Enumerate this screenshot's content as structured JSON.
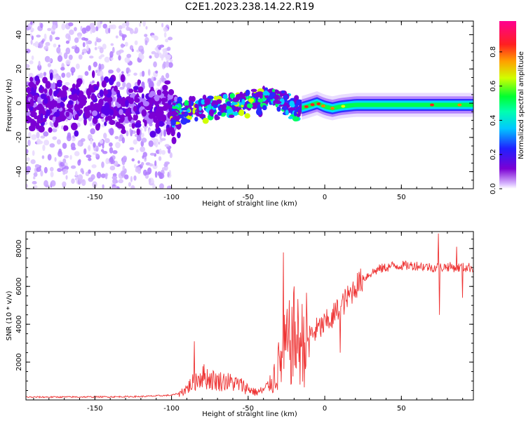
{
  "title": "C2E1.2023.238.14.22.R19",
  "chart_data": [
    {
      "type": "heatmap",
      "xlabel": "Height of straight line (km)",
      "ylabel": "Frequency (Hz)",
      "xlim": [
        -195,
        97
      ],
      "ylim": [
        -50,
        48
      ],
      "xticks": [
        -150,
        -100,
        -50,
        0,
        50
      ],
      "yticks": [
        -40,
        -20,
        0,
        20,
        40
      ],
      "colorbar": {
        "label": "Normalized spectral amplitude",
        "range": [
          0.0,
          0.98
        ],
        "ticks": [
          0.0,
          0.2,
          0.4,
          0.6,
          0.8
        ],
        "colormap": [
          "#ffffff",
          "#7b00d4",
          "#2020ff",
          "#00e0ff",
          "#00ff40",
          "#e0ff00",
          "#ff8000",
          "#ff0040",
          "#ff0090"
        ]
      },
      "ridge": {
        "x": [
          -195,
          -150,
          -110,
          -100,
          -90,
          -75,
          -60,
          -45,
          -35,
          -28,
          -20,
          -12,
          -5,
          0,
          5,
          10,
          20,
          40,
          70,
          97
        ],
        "y": [
          0,
          0,
          -2,
          -7,
          -5,
          -3,
          -1,
          1,
          3,
          2,
          -4,
          -2,
          0,
          -2,
          -3,
          -2,
          -1,
          -1,
          -1,
          -1
        ]
      }
    },
    {
      "type": "line",
      "xlabel": "Height of straight line (km)",
      "ylabel": "SNR (10 * v/v)",
      "xlim": [
        -195,
        97
      ],
      "ylim": [
        0,
        8900
      ],
      "xticks": [
        -150,
        -100,
        -50,
        0,
        50
      ],
      "yticks": [
        2000,
        4000,
        6000,
        8000
      ],
      "color": "#ee3333",
      "series": [
        {
          "x": [
            -195,
            -150,
            -120,
            -100,
            -95,
            -90,
            -85,
            -80,
            -75,
            -70,
            -65,
            -60,
            -55,
            -50,
            -45,
            -40,
            -35,
            -30,
            -25,
            -20,
            -15,
            -10,
            -5,
            0,
            5,
            10,
            15,
            20,
            25,
            30,
            35,
            40,
            45,
            50,
            55,
            60,
            65,
            70,
            75,
            80,
            85,
            90,
            97
          ],
          "y": [
            150,
            160,
            180,
            250,
            350,
            600,
            1000,
            1300,
            1100,
            1000,
            1000,
            900,
            800,
            600,
            400,
            500,
            900,
            1800,
            2800,
            3200,
            3000,
            3400,
            3700,
            4000,
            4400,
            4900,
            5400,
            6000,
            6400,
            6700,
            6900,
            7000,
            7100,
            7100,
            7100,
            7100,
            7050,
            7000,
            7000,
            7050,
            7000,
            7000,
            7000
          ]
        }
      ],
      "spikes": [
        {
          "x": -85,
          "y": 3100
        },
        {
          "x": -27,
          "y": 7800
        },
        {
          "x": -20,
          "y": 6000
        },
        {
          "x": 5,
          "y": 3800
        },
        {
          "x": 10,
          "y": 2500
        },
        {
          "x": 74,
          "y": 8800
        },
        {
          "x": 75,
          "y": 4500
        },
        {
          "x": 86,
          "y": 8100
        },
        {
          "x": 90,
          "y": 5400
        }
      ]
    }
  ]
}
